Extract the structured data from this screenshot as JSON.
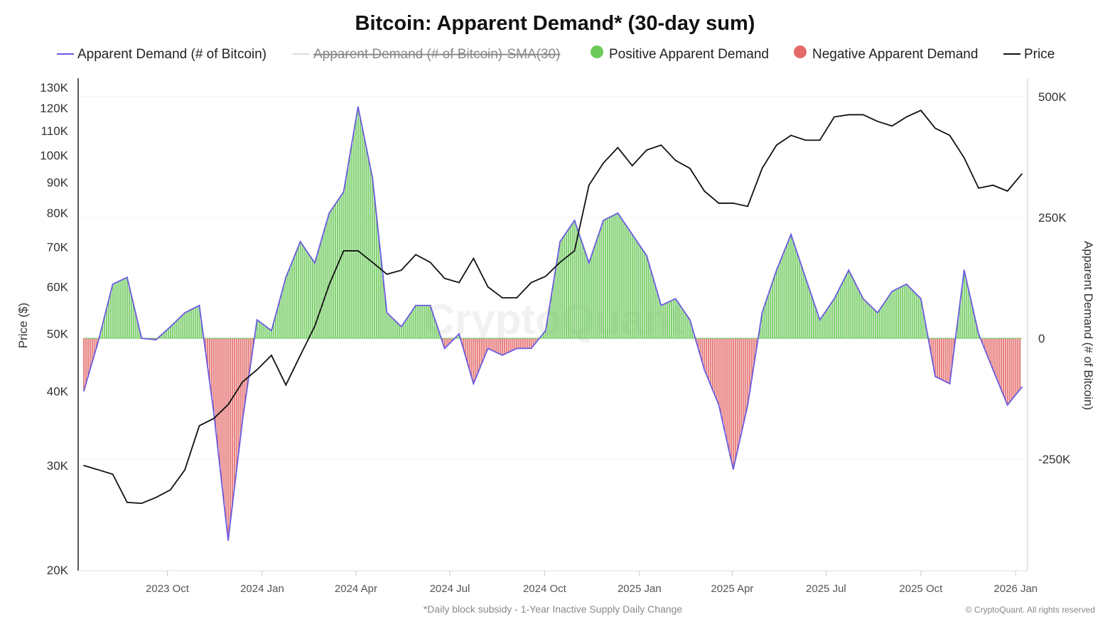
{
  "chart_data": {
    "type": "line",
    "title": "Bitcoin: Apparent Demand* (30-day sum)",
    "footnote": "*Daily block subsidy - 1-Year Inactive Supply Daily Change",
    "credit": "© CryptoQuant. All rights reserved",
    "watermark": "CryptoQuant",
    "legend": {
      "placement": "top",
      "items": [
        {
          "label": "Apparent Demand (# of Bitcoin)",
          "color": "#6a5be0",
          "marker": "line",
          "hidden": false
        },
        {
          "label": "Apparent Demand (# of Bitcoin)-SMA(30)",
          "color": "#999999",
          "marker": "dashed-line",
          "hidden": true
        },
        {
          "label": "Positive Apparent Demand",
          "color": "#6cc95a",
          "marker": "circle",
          "hidden": false
        },
        {
          "label": "Negative Apparent Demand",
          "color": "#e46a6a",
          "marker": "circle",
          "hidden": false
        },
        {
          "label": "Price",
          "color": "#111111",
          "marker": "line",
          "hidden": false
        }
      ]
    },
    "y_left": {
      "label": "Price ($)",
      "scale": "log",
      "range": [
        20000,
        130000
      ],
      "ticks": [
        20000,
        30000,
        40000,
        50000,
        60000,
        70000,
        80000,
        90000,
        100000,
        110000,
        120000,
        130000
      ],
      "tick_labels": [
        "20K",
        "30K",
        "40K",
        "50K",
        "60K",
        "70K",
        "80K",
        "90K",
        "100K",
        "110K",
        "120K",
        "130K"
      ]
    },
    "y_right": {
      "label": "Apparent Demand (# of Bitcoin)",
      "scale": "linear",
      "range": [
        -480000,
        500000
      ],
      "ticks": [
        -250000,
        0,
        250000,
        500000
      ],
      "tick_labels": [
        "-250K",
        "0",
        "250K",
        "500K"
      ]
    },
    "x_axis": {
      "range": [
        "2023-07-12",
        "2026-01-07"
      ],
      "ticks": [
        "2023-10-01",
        "2024-01-01",
        "2024-04-01",
        "2024-07-01",
        "2024-10-01",
        "2025-01-01",
        "2025-04-01",
        "2025-07-01",
        "2025-10-01",
        "2026-01-01"
      ],
      "tick_labels": [
        "2023 Oct",
        "2024 Jan",
        "2024 Apr",
        "2024 Jul",
        "2024 Oct",
        "2025 Jan",
        "2025 Apr",
        "2025 Jul",
        "2025 Oct",
        "2026 Jan"
      ]
    },
    "grid": true,
    "x": [
      "2023-07-12",
      "2023-07-26",
      "2023-08-09",
      "2023-08-23",
      "2023-09-06",
      "2023-09-20",
      "2023-10-04",
      "2023-10-18",
      "2023-11-01",
      "2023-11-15",
      "2023-11-29",
      "2023-12-13",
      "2023-12-27",
      "2024-01-10",
      "2024-01-24",
      "2024-02-07",
      "2024-02-21",
      "2024-03-06",
      "2024-03-20",
      "2024-04-03",
      "2024-04-17",
      "2024-05-01",
      "2024-05-15",
      "2024-05-29",
      "2024-06-12",
      "2024-06-26",
      "2024-07-10",
      "2024-07-24",
      "2024-08-07",
      "2024-08-21",
      "2024-09-04",
      "2024-09-18",
      "2024-10-02",
      "2024-10-16",
      "2024-10-30",
      "2024-11-13",
      "2024-11-27",
      "2024-12-11",
      "2024-12-25",
      "2025-01-08",
      "2025-01-22",
      "2025-02-05",
      "2025-02-19",
      "2025-03-05",
      "2025-03-19",
      "2025-04-02",
      "2025-04-16",
      "2025-04-30",
      "2025-05-14",
      "2025-05-28",
      "2025-06-11",
      "2025-06-25",
      "2025-07-09",
      "2025-07-23",
      "2025-08-06",
      "2025-08-20",
      "2025-09-03",
      "2025-09-17",
      "2025-10-01",
      "2025-10-15",
      "2025-10-29",
      "2025-11-12",
      "2025-11-26",
      "2025-12-10",
      "2025-12-24",
      "2026-01-07"
    ],
    "series": [
      {
        "name": "Price",
        "axis": "left",
        "color": "#111111",
        "values": [
          30000,
          29500,
          29000,
          26000,
          25900,
          26500,
          27300,
          29500,
          35000,
          36000,
          38000,
          41500,
          43500,
          46000,
          41000,
          46000,
          51500,
          60500,
          69000,
          69000,
          66000,
          63000,
          64000,
          68000,
          66000,
          62000,
          61000,
          67000,
          60000,
          57500,
          57500,
          61000,
          62500,
          66000,
          69000,
          89000,
          97000,
          103000,
          96000,
          102000,
          104000,
          98000,
          95000,
          87000,
          83000,
          83000,
          82000,
          95000,
          104000,
          108000,
          106000,
          106000,
          116000,
          117000,
          117000,
          114000,
          112000,
          116000,
          119000,
          111000,
          108000,
          99000,
          88000,
          89000,
          87000,
          93000
        ]
      },
      {
        "name": "Apparent Demand (# of Bitcoin)",
        "axis": "right",
        "color": "#6a5be0",
        "values": [
          -109000,
          -6000,
          112000,
          126000,
          0,
          -3000,
          24000,
          53000,
          68000,
          -153000,
          -418000,
          -168000,
          38000,
          16000,
          126000,
          200000,
          156000,
          259000,
          303000,
          479000,
          332000,
          53000,
          24000,
          68000,
          68000,
          -21000,
          9000,
          -94000,
          -21000,
          -35000,
          -21000,
          -21000,
          16000,
          200000,
          244000,
          156000,
          244000,
          259000,
          215000,
          171000,
          68000,
          82000,
          38000,
          -65000,
          -138000,
          -271000,
          -138000,
          53000,
          141000,
          215000,
          126000,
          38000,
          82000,
          141000,
          82000,
          53000,
          97000,
          112000,
          82000,
          -79000,
          -94000,
          141000,
          9000,
          -65000,
          -138000,
          -101000
        ]
      }
    ],
    "colors": {
      "positive": "#6cc95a",
      "negative": "#e46a6a",
      "demand_line": "#6a5be0",
      "price": "#111111"
    }
  }
}
